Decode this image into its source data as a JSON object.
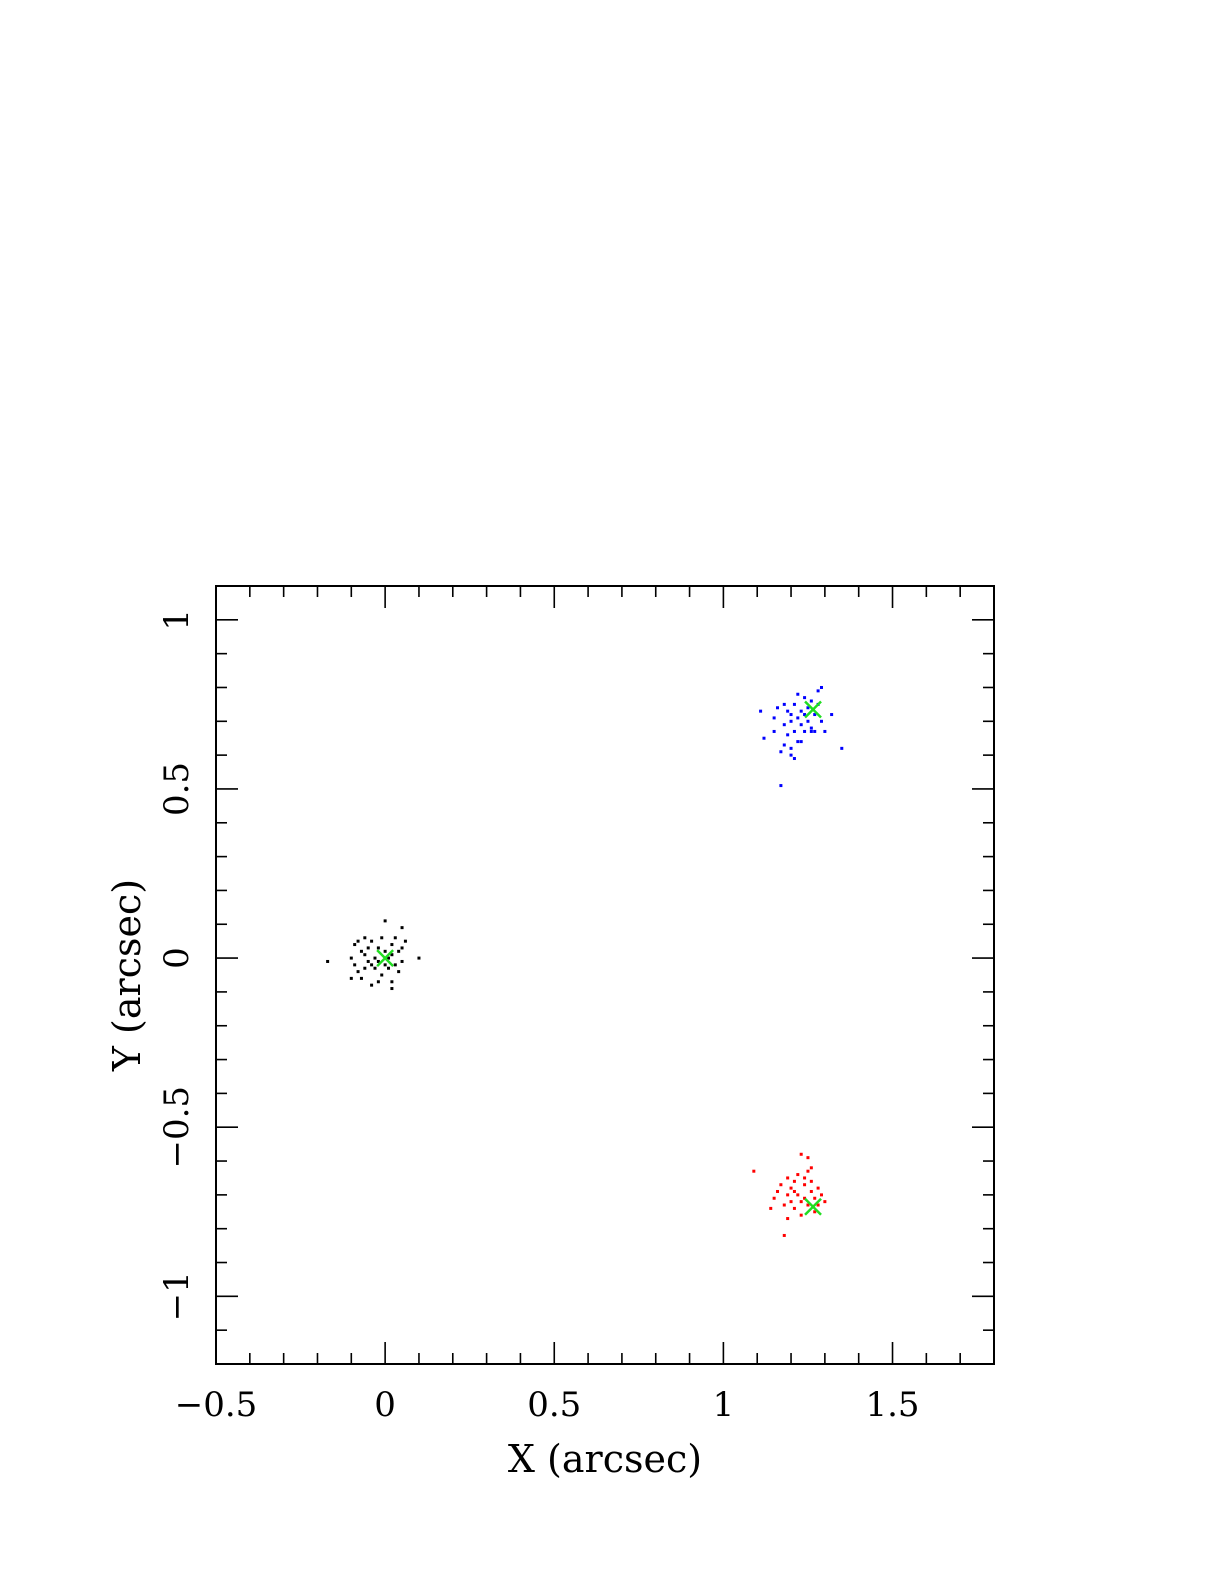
{
  "chart_data": {
    "type": "scatter",
    "title": "",
    "xlabel": "X (arcsec)",
    "ylabel": "Y (arcsec)",
    "xlim": [
      -0.5,
      1.8
    ],
    "ylim": [
      -1.2,
      1.1
    ],
    "x_ticks": [
      {
        "value": -0.5,
        "label": "−0.5"
      },
      {
        "value": 0,
        "label": "0"
      },
      {
        "value": 0.5,
        "label": "0.5"
      },
      {
        "value": 1,
        "label": "1"
      },
      {
        "value": 1.5,
        "label": "1.5"
      }
    ],
    "y_ticks": [
      {
        "value": -1,
        "label": "−1"
      },
      {
        "value": -0.5,
        "label": "−0.5"
      },
      {
        "value": 0,
        "label": "0"
      },
      {
        "value": 0.5,
        "label": "0.5"
      },
      {
        "value": 1,
        "label": "1"
      }
    ],
    "minor_tick_step": 0.1,
    "grid": false,
    "legend": "none",
    "series": [
      {
        "color": "#000000",
        "marker": "dot",
        "points": [
          [
            -0.17,
            -0.01
          ],
          [
            -0.1,
            0.0
          ],
          [
            -0.09,
            0.04
          ],
          [
            -0.09,
            -0.02
          ],
          [
            -0.08,
            0.05
          ],
          [
            -0.08,
            -0.04
          ],
          [
            -0.07,
            0.02
          ],
          [
            -0.07,
            -0.06
          ],
          [
            -0.06,
            0.01
          ],
          [
            -0.06,
            -0.03
          ],
          [
            -0.05,
            0.03
          ],
          [
            -0.05,
            -0.01
          ],
          [
            -0.04,
            0.05
          ],
          [
            -0.04,
            -0.02
          ],
          [
            -0.04,
            -0.08
          ],
          [
            -0.03,
            0.0
          ],
          [
            -0.03,
            -0.03
          ],
          [
            -0.02,
            0.03
          ],
          [
            -0.02,
            -0.01
          ],
          [
            -0.01,
            0.06
          ],
          [
            -0.01,
            -0.05
          ],
          [
            0.0,
            0.02
          ],
          [
            0.0,
            -0.02
          ],
          [
            0.0,
            0.11
          ],
          [
            0.01,
            0.0
          ],
          [
            0.01,
            -0.03
          ],
          [
            0.02,
            0.04
          ],
          [
            0.02,
            0.01
          ],
          [
            0.02,
            -0.07
          ],
          [
            0.03,
            -0.02
          ],
          [
            0.03,
            0.06
          ],
          [
            0.04,
            0.02
          ],
          [
            0.04,
            -0.04
          ],
          [
            0.05,
            0.03
          ],
          [
            0.05,
            -0.01
          ],
          [
            0.05,
            0.09
          ],
          [
            0.06,
            0.05
          ],
          [
            0.1,
            0.0
          ],
          [
            -0.1,
            -0.06
          ],
          [
            -0.06,
            0.06
          ],
          [
            -0.02,
            -0.07
          ],
          [
            0.02,
            -0.09
          ]
        ]
      },
      {
        "color": "#0000ff",
        "marker": "dot",
        "points": [
          [
            1.11,
            0.73
          ],
          [
            1.12,
            0.65
          ],
          [
            1.15,
            0.67
          ],
          [
            1.15,
            0.71
          ],
          [
            1.16,
            0.74
          ],
          [
            1.17,
            0.61
          ],
          [
            1.17,
            0.51
          ],
          [
            1.18,
            0.69
          ],
          [
            1.18,
            0.63
          ],
          [
            1.19,
            0.73
          ],
          [
            1.19,
            0.66
          ],
          [
            1.2,
            0.72
          ],
          [
            1.2,
            0.7
          ],
          [
            1.2,
            0.62
          ],
          [
            1.21,
            0.67
          ],
          [
            1.21,
            0.75
          ],
          [
            1.21,
            0.59
          ],
          [
            1.22,
            0.71
          ],
          [
            1.22,
            0.64
          ],
          [
            1.22,
            0.78
          ],
          [
            1.23,
            0.69
          ],
          [
            1.23,
            0.73
          ],
          [
            1.24,
            0.67
          ],
          [
            1.24,
            0.72
          ],
          [
            1.25,
            0.74
          ],
          [
            1.25,
            0.7
          ],
          [
            1.26,
            0.68
          ],
          [
            1.26,
            0.76
          ],
          [
            1.27,
            0.72
          ],
          [
            1.27,
            0.67
          ],
          [
            1.28,
            0.79
          ],
          [
            1.28,
            0.75
          ],
          [
            1.29,
            0.7
          ],
          [
            1.3,
            0.67
          ],
          [
            1.32,
            0.72
          ],
          [
            1.35,
            0.62
          ],
          [
            1.24,
            0.77
          ],
          [
            1.18,
            0.75
          ],
          [
            1.29,
            0.8
          ],
          [
            1.26,
            0.67
          ],
          [
            1.2,
            0.6
          ],
          [
            1.23,
            0.64
          ]
        ]
      },
      {
        "color": "#ff0000",
        "marker": "dot",
        "points": [
          [
            1.09,
            -0.63
          ],
          [
            1.14,
            -0.74
          ],
          [
            1.15,
            -0.71
          ],
          [
            1.16,
            -0.69
          ],
          [
            1.17,
            -0.67
          ],
          [
            1.18,
            -0.73
          ],
          [
            1.18,
            -0.82
          ],
          [
            1.19,
            -0.7
          ],
          [
            1.19,
            -0.65
          ],
          [
            1.2,
            -0.72
          ],
          [
            1.2,
            -0.68
          ],
          [
            1.21,
            -0.66
          ],
          [
            1.21,
            -0.74
          ],
          [
            1.22,
            -0.7
          ],
          [
            1.22,
            -0.64
          ],
          [
            1.23,
            -0.72
          ],
          [
            1.23,
            -0.58
          ],
          [
            1.24,
            -0.67
          ],
          [
            1.24,
            -0.71
          ],
          [
            1.25,
            -0.63
          ],
          [
            1.25,
            -0.73
          ],
          [
            1.25,
            -0.59
          ],
          [
            1.26,
            -0.69
          ],
          [
            1.26,
            -0.66
          ],
          [
            1.27,
            -0.75
          ],
          [
            1.27,
            -0.71
          ],
          [
            1.28,
            -0.73
          ],
          [
            1.29,
            -0.7
          ],
          [
            1.3,
            -0.72
          ],
          [
            1.23,
            -0.76
          ],
          [
            1.21,
            -0.69
          ],
          [
            1.24,
            -0.65
          ],
          [
            1.19,
            -0.77
          ],
          [
            1.26,
            -0.62
          ],
          [
            1.28,
            -0.68
          ]
        ]
      },
      {
        "color": "#22dd22",
        "marker": "cross",
        "points": [
          [
            0.0,
            0.0
          ],
          [
            1.265,
            0.735
          ],
          [
            1.265,
            -0.735
          ]
        ]
      }
    ]
  }
}
